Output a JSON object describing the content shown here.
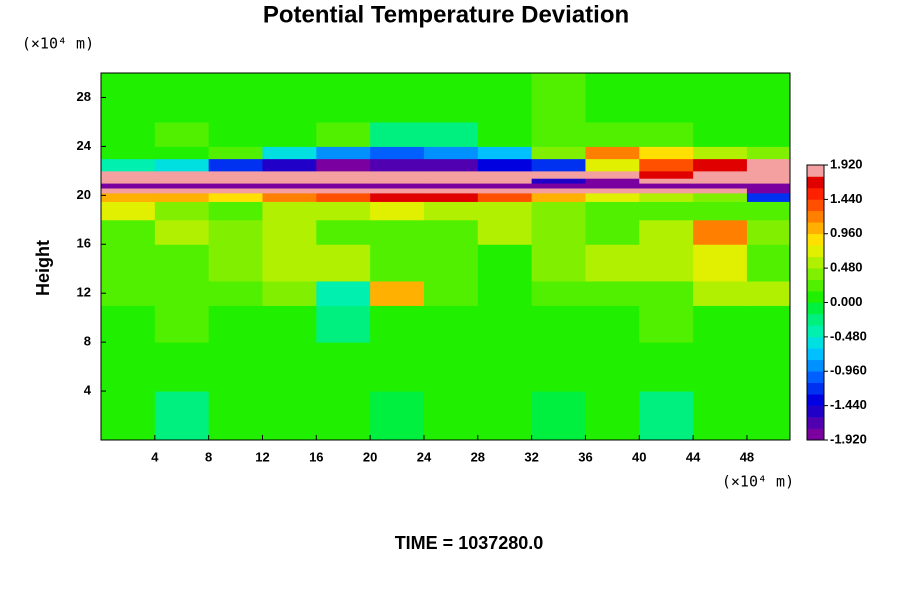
{
  "chart_data": {
    "type": "heatmap",
    "title": "Potential Temperature Deviation",
    "y_unit": "(×10⁴ m)",
    "x_unit": "(×10⁴ m)",
    "ylabel": "Height",
    "footer": "TIME = 1037280.0",
    "xlim": [
      0,
      51.2
    ],
    "ylim": [
      0,
      30
    ],
    "xticks": [
      4,
      8,
      12,
      16,
      20,
      24,
      28,
      32,
      36,
      40,
      44,
      48
    ],
    "yticks": [
      4,
      8,
      12,
      16,
      20,
      24,
      28
    ],
    "x_edges": [
      0,
      4,
      8,
      12,
      16,
      20,
      24,
      28,
      32,
      36,
      40,
      44,
      48,
      51.2
    ],
    "y_edges": [
      0,
      4,
      8,
      11,
      13,
      16,
      18,
      19.5,
      20.2,
      20.6,
      21.0,
      21.4,
      22,
      23,
      24,
      26,
      30
    ],
    "z": [
      [
        0,
        -0.2,
        0,
        0.1,
        0,
        -0.1,
        0,
        0,
        -0.1,
        0,
        -0.2,
        0,
        0
      ],
      [
        0.1,
        0,
        0,
        0,
        0.1,
        0,
        0,
        0.1,
        0,
        0,
        0,
        0.1,
        0
      ],
      [
        0,
        0.2,
        0.1,
        0,
        -0.2,
        0,
        0.1,
        0,
        0,
        0,
        0.2,
        0,
        0.1
      ],
      [
        0.3,
        0.2,
        0.2,
        0.4,
        -0.4,
        1.0,
        0.2,
        0.1,
        0.2,
        0.3,
        0.3,
        0.6,
        0.5
      ],
      [
        0.2,
        0.3,
        0.4,
        0.5,
        0.6,
        0.3,
        0.2,
        0.1,
        0.4,
        0.5,
        0.6,
        0.7,
        0.3
      ],
      [
        0.3,
        0.5,
        0.4,
        0.6,
        0.3,
        0.2,
        0.3,
        0.5,
        0.4,
        0.3,
        0.5,
        1.2,
        0.4
      ],
      [
        0.8,
        0.4,
        0.3,
        0.5,
        0.6,
        0.7,
        0.5,
        0.6,
        0.4,
        0.3,
        0.2,
        0.3,
        0.2
      ],
      [
        1.0,
        1.1,
        0.9,
        1.2,
        1.4,
        1.6,
        1.7,
        1.3,
        1.0,
        0.8,
        0.6,
        0.4,
        -1.2
      ],
      [
        2.0,
        2.0,
        2.0,
        2.0,
        2.0,
        2.0,
        2.0,
        2.0,
        2.0,
        2.0,
        2.0,
        1.8,
        -1.9
      ],
      [
        -2.0,
        -2.0,
        -2.0,
        -2.0,
        -2.0,
        -2.0,
        -2.0,
        -2.0,
        -2.0,
        -2.0,
        -2.0,
        -2.0,
        -2.0
      ],
      [
        2.0,
        2.0,
        2.0,
        2.0,
        2.0,
        2.0,
        2.0,
        2.0,
        -1.5,
        -1.8,
        2.0,
        2.0,
        2.0
      ],
      [
        2.0,
        2.0,
        2.0,
        2.0,
        1.9,
        2.0,
        2.0,
        2.0,
        2.0,
        2.0,
        1.6,
        2.0,
        2.0
      ],
      [
        -0.4,
        -0.6,
        -1.2,
        -1.5,
        -1.8,
        -1.6,
        -1.7,
        -1.4,
        -1.2,
        0.8,
        1.4,
        1.6,
        1.8
      ],
      [
        0.1,
        0,
        0.2,
        -0.6,
        -0.8,
        -1.0,
        -0.8,
        -0.7,
        0.4,
        1.2,
        0.9,
        0.6,
        0.4
      ],
      [
        0.1,
        0.2,
        0.1,
        0,
        0.2,
        -0.3,
        -0.2,
        0.1,
        0.2,
        0.3,
        0.2,
        0.1,
        0.1
      ],
      [
        0.1,
        0,
        0,
        0.1,
        0,
        0,
        0,
        0.1,
        0.2,
        0.1,
        0,
        0,
        0.1
      ]
    ],
    "clim": [
      -1.92,
      1.92
    ],
    "colors": [
      "#7a00a0",
      "#5000b0",
      "#2000c8",
      "#0000e0",
      "#0030f0",
      "#0060ff",
      "#0090ff",
      "#00c0ff",
      "#00e0e0",
      "#00f0b0",
      "#00f080",
      "#00f040",
      "#20f000",
      "#50f000",
      "#80f000",
      "#b0f000",
      "#e0f000",
      "#ffe000",
      "#ffb000",
      "#ff8000",
      "#ff5000",
      "#ff2000",
      "#e00000",
      "#f4a0a0"
    ],
    "cticks": [
      {
        "value": 1.92,
        "label": "1.920"
      },
      {
        "value": 1.44,
        "label": "1.440"
      },
      {
        "value": 0.96,
        "label": "0.960"
      },
      {
        "value": 0.48,
        "label": "0.480"
      },
      {
        "value": 0,
        "label": "0.000"
      },
      {
        "value": -0.48,
        "label": "-0.480"
      },
      {
        "value": -0.96,
        "label": "-0.960"
      },
      {
        "value": -1.44,
        "label": "-1.440"
      },
      {
        "value": -1.92,
        "label": "-1.920"
      }
    ]
  }
}
